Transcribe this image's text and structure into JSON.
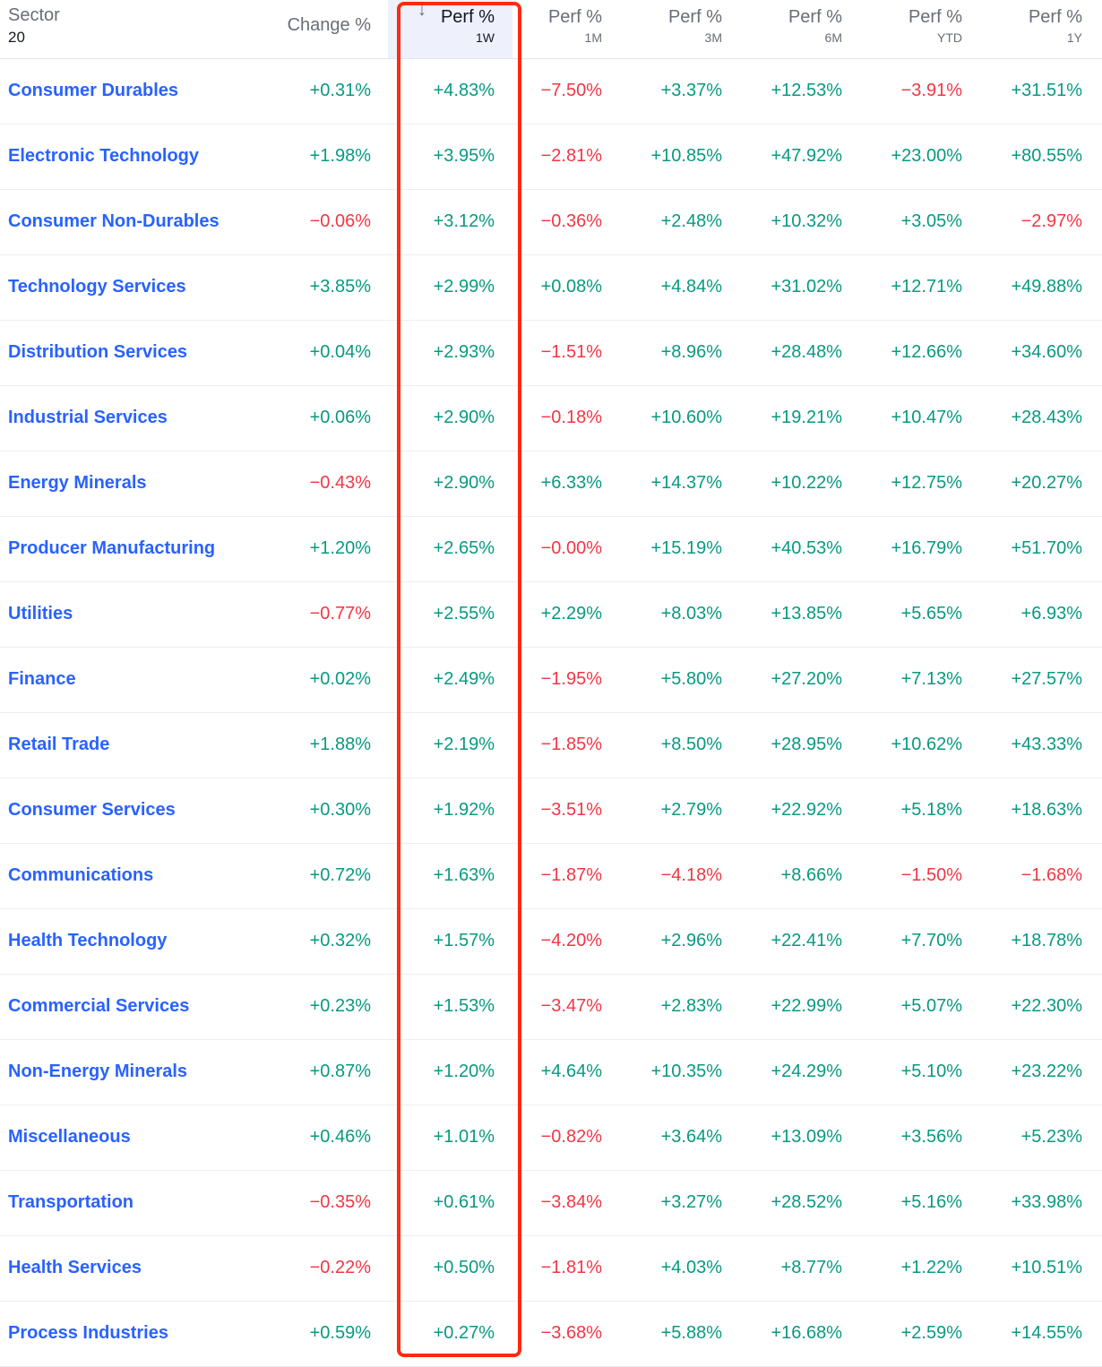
{
  "header": {
    "sector_label": "Sector",
    "sector_count": "20",
    "columns": [
      {
        "title": "Change %",
        "sub": ""
      },
      {
        "title": "Perf %",
        "sub": "1W",
        "sorted": true,
        "sort_icon": "arrow-down-icon",
        "sort_glyph": "↓"
      },
      {
        "title": "Perf %",
        "sub": "1M"
      },
      {
        "title": "Perf %",
        "sub": "3M"
      },
      {
        "title": "Perf %",
        "sub": "6M"
      },
      {
        "title": "Perf %",
        "sub": "YTD"
      },
      {
        "title": "Perf %",
        "sub": "1Y"
      }
    ]
  },
  "colors": {
    "positive": "#089981",
    "negative": "#f23645",
    "link": "#2962ff",
    "highlight_box": "#ff2a12"
  },
  "rows": [
    {
      "name": "Consumer Durables",
      "values": [
        "+0.31%",
        "+4.83%",
        "−7.50%",
        "+3.37%",
        "+12.53%",
        "−3.91%",
        "+31.51%"
      ]
    },
    {
      "name": "Electronic Technology",
      "values": [
        "+1.98%",
        "+3.95%",
        "−2.81%",
        "+10.85%",
        "+47.92%",
        "+23.00%",
        "+80.55%"
      ]
    },
    {
      "name": "Consumer Non-Durables",
      "values": [
        "−0.06%",
        "+3.12%",
        "−0.36%",
        "+2.48%",
        "+10.32%",
        "+3.05%",
        "−2.97%"
      ]
    },
    {
      "name": "Technology Services",
      "values": [
        "+3.85%",
        "+2.99%",
        "+0.08%",
        "+4.84%",
        "+31.02%",
        "+12.71%",
        "+49.88%"
      ]
    },
    {
      "name": "Distribution Services",
      "values": [
        "+0.04%",
        "+2.93%",
        "−1.51%",
        "+8.96%",
        "+28.48%",
        "+12.66%",
        "+34.60%"
      ]
    },
    {
      "name": "Industrial Services",
      "values": [
        "+0.06%",
        "+2.90%",
        "−0.18%",
        "+10.60%",
        "+19.21%",
        "+10.47%",
        "+28.43%"
      ]
    },
    {
      "name": "Energy Minerals",
      "values": [
        "−0.43%",
        "+2.90%",
        "+6.33%",
        "+14.37%",
        "+10.22%",
        "+12.75%",
        "+20.27%"
      ]
    },
    {
      "name": "Producer Manufacturing",
      "values": [
        "+1.20%",
        "+2.65%",
        "−0.00%",
        "+15.19%",
        "+40.53%",
        "+16.79%",
        "+51.70%"
      ]
    },
    {
      "name": "Utilities",
      "values": [
        "−0.77%",
        "+2.55%",
        "+2.29%",
        "+8.03%",
        "+13.85%",
        "+5.65%",
        "+6.93%"
      ]
    },
    {
      "name": "Finance",
      "values": [
        "+0.02%",
        "+2.49%",
        "−1.95%",
        "+5.80%",
        "+27.20%",
        "+7.13%",
        "+27.57%"
      ]
    },
    {
      "name": "Retail Trade",
      "values": [
        "+1.88%",
        "+2.19%",
        "−1.85%",
        "+8.50%",
        "+28.95%",
        "+10.62%",
        "+43.33%"
      ]
    },
    {
      "name": "Consumer Services",
      "values": [
        "+0.30%",
        "+1.92%",
        "−3.51%",
        "+2.79%",
        "+22.92%",
        "+5.18%",
        "+18.63%"
      ]
    },
    {
      "name": "Communications",
      "values": [
        "+0.72%",
        "+1.63%",
        "−1.87%",
        "−4.18%",
        "+8.66%",
        "−1.50%",
        "−1.68%"
      ]
    },
    {
      "name": "Health Technology",
      "values": [
        "+0.32%",
        "+1.57%",
        "−4.20%",
        "+2.96%",
        "+22.41%",
        "+7.70%",
        "+18.78%"
      ]
    },
    {
      "name": "Commercial Services",
      "values": [
        "+0.23%",
        "+1.53%",
        "−3.47%",
        "+2.83%",
        "+22.99%",
        "+5.07%",
        "+22.30%"
      ]
    },
    {
      "name": "Non-Energy Minerals",
      "values": [
        "+0.87%",
        "+1.20%",
        "+4.64%",
        "+10.35%",
        "+24.29%",
        "+5.10%",
        "+23.22%"
      ]
    },
    {
      "name": "Miscellaneous",
      "values": [
        "+0.46%",
        "+1.01%",
        "−0.82%",
        "+3.64%",
        "+13.09%",
        "+3.56%",
        "+5.23%"
      ]
    },
    {
      "name": "Transportation",
      "values": [
        "−0.35%",
        "+0.61%",
        "−3.84%",
        "+3.27%",
        "+28.52%",
        "+5.16%",
        "+33.98%"
      ]
    },
    {
      "name": "Health Services",
      "values": [
        "−0.22%",
        "+0.50%",
        "−1.81%",
        "+4.03%",
        "+8.77%",
        "+1.22%",
        "+10.51%"
      ]
    },
    {
      "name": "Process Industries",
      "values": [
        "+0.59%",
        "+0.27%",
        "−3.68%",
        "+5.88%",
        "+16.68%",
        "+2.59%",
        "+14.55%"
      ]
    }
  ]
}
